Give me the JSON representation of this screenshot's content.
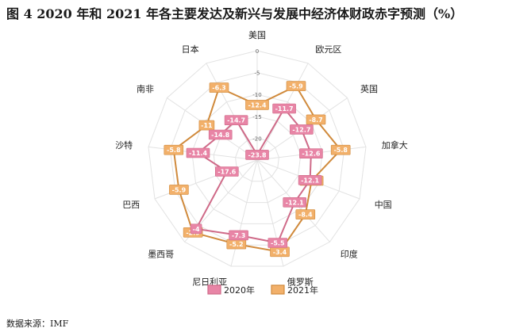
{
  "title": "图 4   2020 年和 2021 年各主要发达及新兴与发展中经济体财政赤字预测（%）",
  "source": "数据来源：IMF",
  "colors": {
    "s2020_line": "#cf6a88",
    "s2020_fill": "#e885a6",
    "s2021_line": "#d08a3c",
    "s2021_fill": "#f2b06a",
    "grid": "#e2e2e2"
  },
  "chart_data": {
    "type": "radar",
    "axes": [
      "美国",
      "欧元区",
      "英国",
      "加拿大",
      "中国",
      "印度",
      "俄罗斯",
      "尼日利亚",
      "墨西哥",
      "巴西",
      "沙特",
      "南非",
      "日本"
    ],
    "ticks": [
      0,
      -5,
      -10,
      -15,
      -20
    ],
    "tick_labels": [
      "0",
      "-5",
      "-10",
      "-15",
      "-20"
    ],
    "range": [
      -25,
      0
    ],
    "legend_position": "bottom",
    "series": [
      {
        "name": "2020年",
        "values": [
          -23.8,
          -11.7,
          -12.7,
          -12.6,
          -12.1,
          -12.1,
          -5.5,
          -7.3,
          -4.0,
          -17.6,
          -11.4,
          -14.8,
          -14.7
        ],
        "labels": [
          "-23.8",
          "-11.7",
          "-12.7",
          "-12.6",
          "-12.1",
          "-12.1",
          "-5.5",
          "-7.3",
          "-4",
          "-17.6",
          "-11.4",
          "-14.8",
          "-14.7"
        ]
      },
      {
        "name": "2021年",
        "values": [
          -12.4,
          -5.9,
          -8.7,
          -5.8,
          -11.7,
          -8.4,
          -3.4,
          -5.2,
          -2.9,
          -5.9,
          -5.8,
          -11.0,
          -6.3
        ],
        "labels": [
          "-12.4",
          "-5.9",
          "-8.7",
          "-5.8",
          "-11.7",
          "-8.4",
          "-3.4",
          "-5.2",
          "-2.9",
          "-5.9",
          "-5.8",
          "-11",
          "-6.3"
        ]
      }
    ]
  }
}
